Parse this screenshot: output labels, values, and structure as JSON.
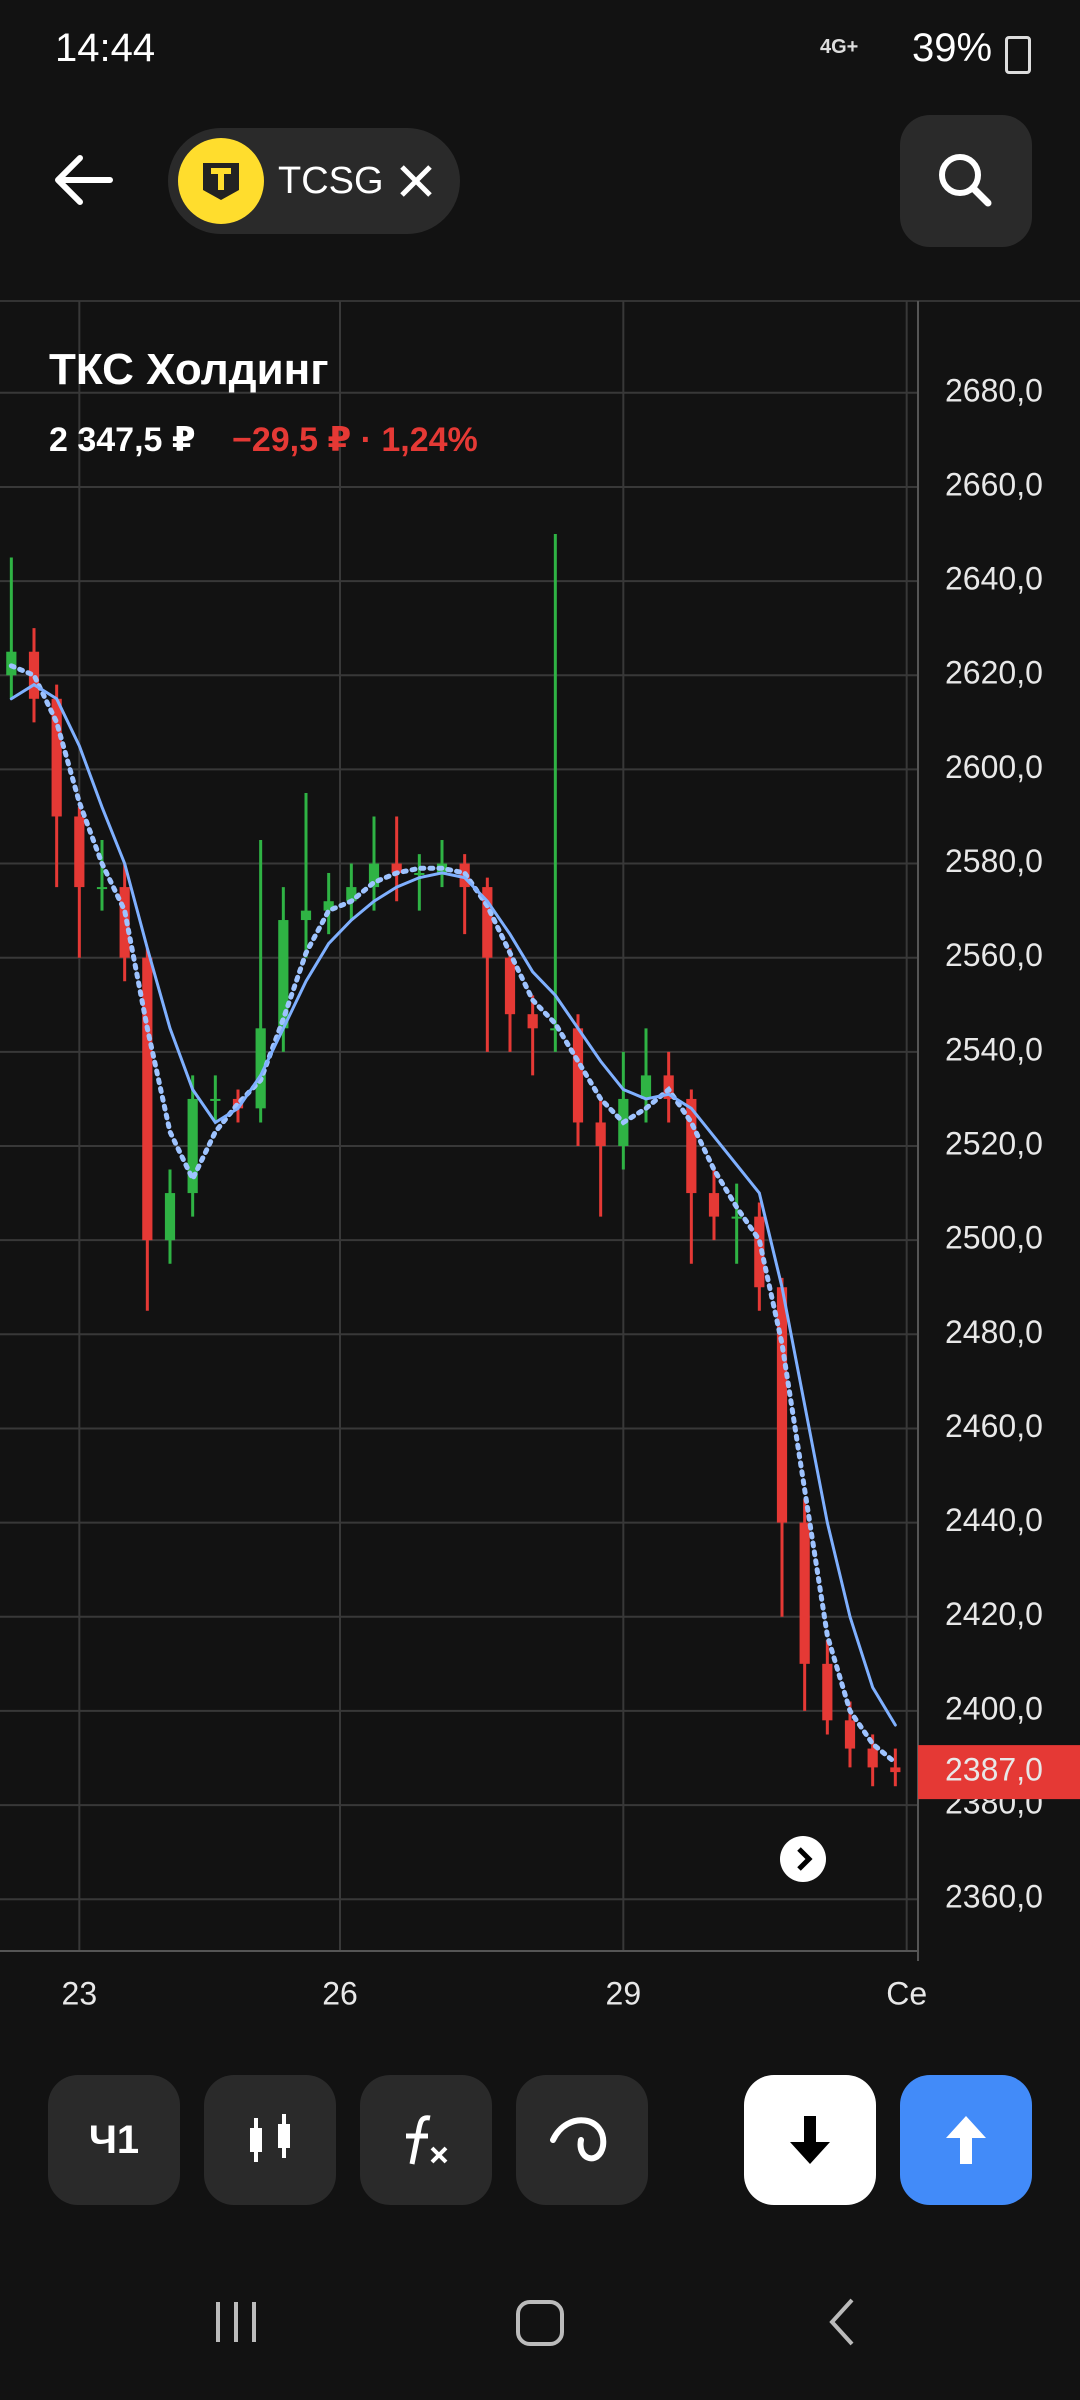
{
  "status_bar": {
    "time": "14:44",
    "network": "4G+",
    "battery": "39%"
  },
  "header": {
    "ticker": "TCSG"
  },
  "instrument": {
    "name": "ТКС Холдинг",
    "price": "2 347,5 ₽",
    "change": "−29,5 ₽ · 1,24%"
  },
  "chart_data": {
    "type": "candlestick",
    "x": [
      0,
      1,
      2,
      3,
      4,
      5,
      6,
      7,
      8,
      9,
      10,
      11,
      12,
      13,
      14,
      15,
      16,
      17,
      18,
      19,
      20,
      21,
      22,
      23,
      24,
      25,
      26,
      27,
      28,
      29,
      30,
      31,
      32,
      33,
      34,
      35,
      36,
      37,
      38,
      39
    ],
    "open": [
      2620,
      2625,
      2615,
      2590,
      2575,
      2575,
      2560,
      2500,
      2510,
      2530,
      2530,
      2528,
      2545,
      2568,
      2570,
      2572,
      2575,
      2580,
      2578,
      2578,
      2580,
      2575,
      2560,
      2548,
      2545,
      2545,
      2525,
      2520,
      2530,
      2535,
      2530,
      2510,
      2505,
      2505,
      2490,
      2440,
      2410,
      2398,
      2392,
      2388
    ],
    "high": [
      2645,
      2630,
      2618,
      2592,
      2585,
      2580,
      2562,
      2515,
      2535,
      2535,
      2532,
      2585,
      2575,
      2595,
      2578,
      2580,
      2590,
      2590,
      2582,
      2585,
      2582,
      2577,
      2562,
      2552,
      2650,
      2548,
      2530,
      2540,
      2545,
      2540,
      2532,
      2515,
      2512,
      2508,
      2492,
      2445,
      2415,
      2402,
      2395,
      2392
    ],
    "low": [
      2615,
      2610,
      2575,
      2560,
      2570,
      2555,
      2485,
      2495,
      2505,
      2525,
      2525,
      2525,
      2540,
      2560,
      2565,
      2568,
      2570,
      2572,
      2570,
      2575,
      2565,
      2540,
      2540,
      2535,
      2540,
      2520,
      2505,
      2515,
      2525,
      2525,
      2495,
      2500,
      2495,
      2485,
      2420,
      2400,
      2395,
      2388,
      2384,
      2384
    ],
    "close": [
      2625,
      2615,
      2590,
      2575,
      2575,
      2560,
      2500,
      2510,
      2530,
      2530,
      2528,
      2545,
      2568,
      2570,
      2572,
      2575,
      2580,
      2578,
      2578,
      2580,
      2575,
      2560,
      2548,
      2545,
      2545,
      2525,
      2520,
      2530,
      2535,
      2530,
      2510,
      2505,
      2505,
      2490,
      2440,
      2410,
      2398,
      2392,
      2388,
      2387
    ],
    "up_color": "#2fb344",
    "down_color": "#e53935",
    "series": [
      {
        "color": "#9ec3ff",
        "style": "dotted",
        "values": [
          2622,
          2620,
          2610,
          2593,
          2580,
          2570,
          2545,
          2523,
          2513,
          2523,
          2529,
          2534,
          2547,
          2561,
          2570,
          2572,
          2576,
          2578,
          2579,
          2579,
          2578,
          2571,
          2561,
          2551,
          2546,
          2538,
          2530,
          2525,
          2528,
          2532,
          2525,
          2515,
          2507,
          2500,
          2478,
          2447,
          2416,
          2400,
          2393,
          2389
        ]
      },
      {
        "color": "#7fb0ff",
        "style": "solid",
        "values": [
          2615,
          2618,
          2615,
          2605,
          2592,
          2580,
          2562,
          2545,
          2532,
          2525,
          2528,
          2535,
          2545,
          2555,
          2563,
          2568,
          2572,
          2575,
          2577,
          2578,
          2577,
          2572,
          2565,
          2557,
          2552,
          2545,
          2538,
          2532,
          2530,
          2531,
          2528,
          2522,
          2516,
          2510,
          2490,
          2465,
          2440,
          2420,
          2405,
          2397
        ]
      }
    ],
    "xlim": [
      -0.5,
      40
    ],
    "xticks": [
      {
        "value": 3,
        "label": "23"
      },
      {
        "value": 14.5,
        "label": "26"
      },
      {
        "value": 27,
        "label": "29"
      },
      {
        "value": 39.5,
        "label": "Се"
      }
    ],
    "ylim": [
      2349,
      2699.5
    ],
    "yticks": [
      {
        "value": 2360,
        "label": "2360,0"
      },
      {
        "value": 2380,
        "label": "2380,0"
      },
      {
        "value": 2400,
        "label": "2400,0"
      },
      {
        "value": 2420,
        "label": "2420,0"
      },
      {
        "value": 2440,
        "label": "2440,0"
      },
      {
        "value": 2460,
        "label": "2460,0"
      },
      {
        "value": 2480,
        "label": "2480,0"
      },
      {
        "value": 2500,
        "label": "2500,0"
      },
      {
        "value": 2520,
        "label": "2520,0"
      },
      {
        "value": 2540,
        "label": "2540,0"
      },
      {
        "value": 2560,
        "label": "2560,0"
      },
      {
        "value": 2580,
        "label": "2580,0"
      },
      {
        "value": 2600,
        "label": "2600,0"
      },
      {
        "value": 2620,
        "label": "2620,0"
      },
      {
        "value": 2640,
        "label": "2640,0"
      },
      {
        "value": 2660,
        "label": "2660,0"
      },
      {
        "value": 2680,
        "label": "2680,0"
      }
    ],
    "last_price": {
      "value": 2387,
      "label": "2387,0"
    },
    "grid": true
  },
  "toolbar": {
    "interval": "Ч1"
  }
}
